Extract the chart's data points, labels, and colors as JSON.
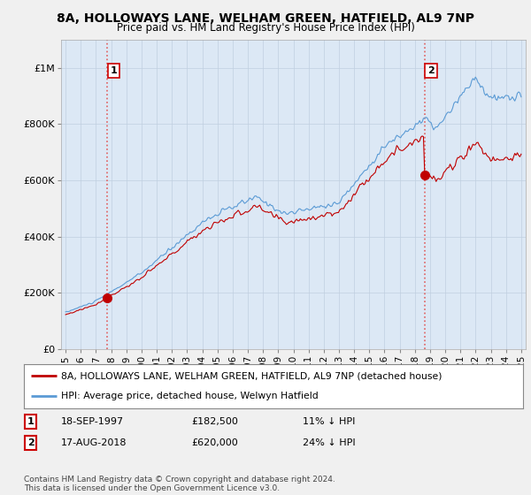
{
  "title": "8A, HOLLOWAYS LANE, WELHAM GREEN, HATFIELD, AL9 7NP",
  "subtitle": "Price paid vs. HM Land Registry's House Price Index (HPI)",
  "sale1_date": 1997.75,
  "sale1_price": 182500,
  "sale1_label": "1",
  "sale2_date": 2018.63,
  "sale2_price": 620000,
  "sale2_label": "2",
  "legend_entry1": "8A, HOLLOWAYS LANE, WELHAM GREEN, HATFIELD, AL9 7NP (detached house)",
  "legend_entry2": "HPI: Average price, detached house, Welwyn Hatfield",
  "footer": "Contains HM Land Registry data © Crown copyright and database right 2024.\nThis data is licensed under the Open Government Licence v3.0.",
  "hpi_color": "#5b9bd5",
  "price_color": "#c00000",
  "dashed_line_color": "#e06060",
  "marker_color": "#c00000",
  "background_color": "#f0f0f0",
  "plot_bg_color": "#dce8f5",
  "ylim": [
    0,
    1100000
  ],
  "xlim_start": 1994.7,
  "xlim_end": 2025.3,
  "yticks": [
    0,
    200000,
    400000,
    600000,
    800000,
    1000000
  ],
  "ytick_labels": [
    "£0",
    "£200K",
    "£400K",
    "£600K",
    "£800K",
    "£1M"
  ]
}
